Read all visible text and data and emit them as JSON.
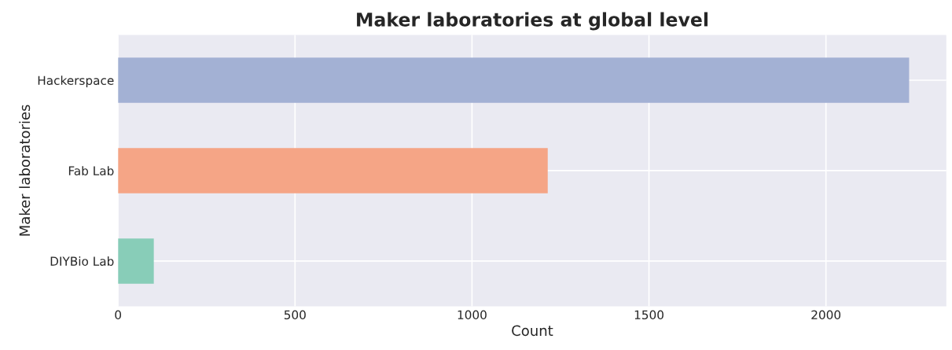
{
  "chart_data": {
    "type": "bar",
    "orientation": "horizontal",
    "title": "Maker laboratories at global level",
    "xlabel": "Count",
    "ylabel": "Maker laboratories",
    "categories": [
      "Hackerspace",
      "Fab Lab",
      "DIYBio Lab"
    ],
    "values": [
      2235,
      1214,
      101
    ],
    "colors": [
      "#a3b1d4",
      "#f5a586",
      "#88cdb8"
    ],
    "xlim": [
      0,
      2340
    ],
    "xticks": [
      0,
      500,
      1000,
      1500,
      2000
    ],
    "grid": true
  }
}
